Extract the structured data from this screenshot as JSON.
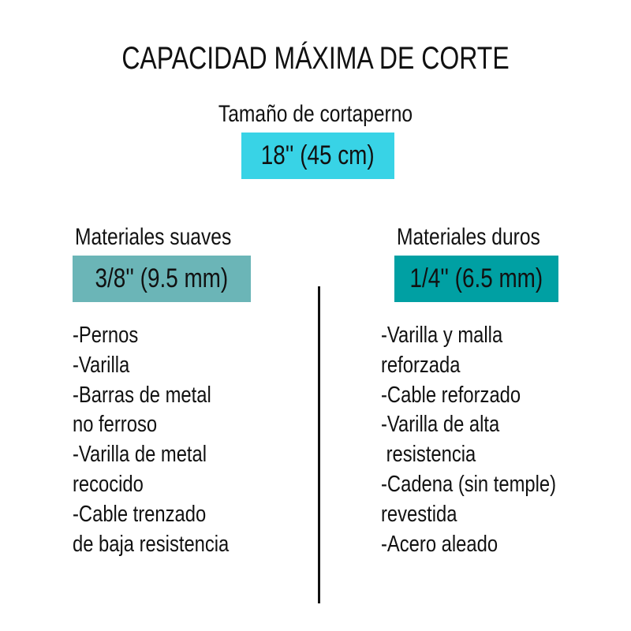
{
  "title": "CAPACIDAD MÁXIMA DE CORTE",
  "size": {
    "label": "Tamaño de cortaperno",
    "value": "18'' (45 cm)",
    "color": "#38d3e6"
  },
  "soft": {
    "label": "Materiales suaves",
    "value": "3/8'' (9.5 mm)",
    "color": "#6bb5b7",
    "lines": [
      "-Pernos",
      "-Varilla",
      "-Barras de metal",
      "no ferroso",
      "-Varilla de metal",
      "recocido",
      "-Cable trenzado",
      "de baja resistencia"
    ]
  },
  "hard": {
    "label": "Materiales duros",
    "value": "1/4'' (6.5 mm)",
    "color": "#00a0a3",
    "lines": [
      "-Varilla y malla",
      "reforzada",
      "-Cable reforzado",
      "-Varilla de alta",
      " resistencia",
      "-Cadena (sin temple)",
      "revestida",
      "-Acero aleado"
    ]
  }
}
